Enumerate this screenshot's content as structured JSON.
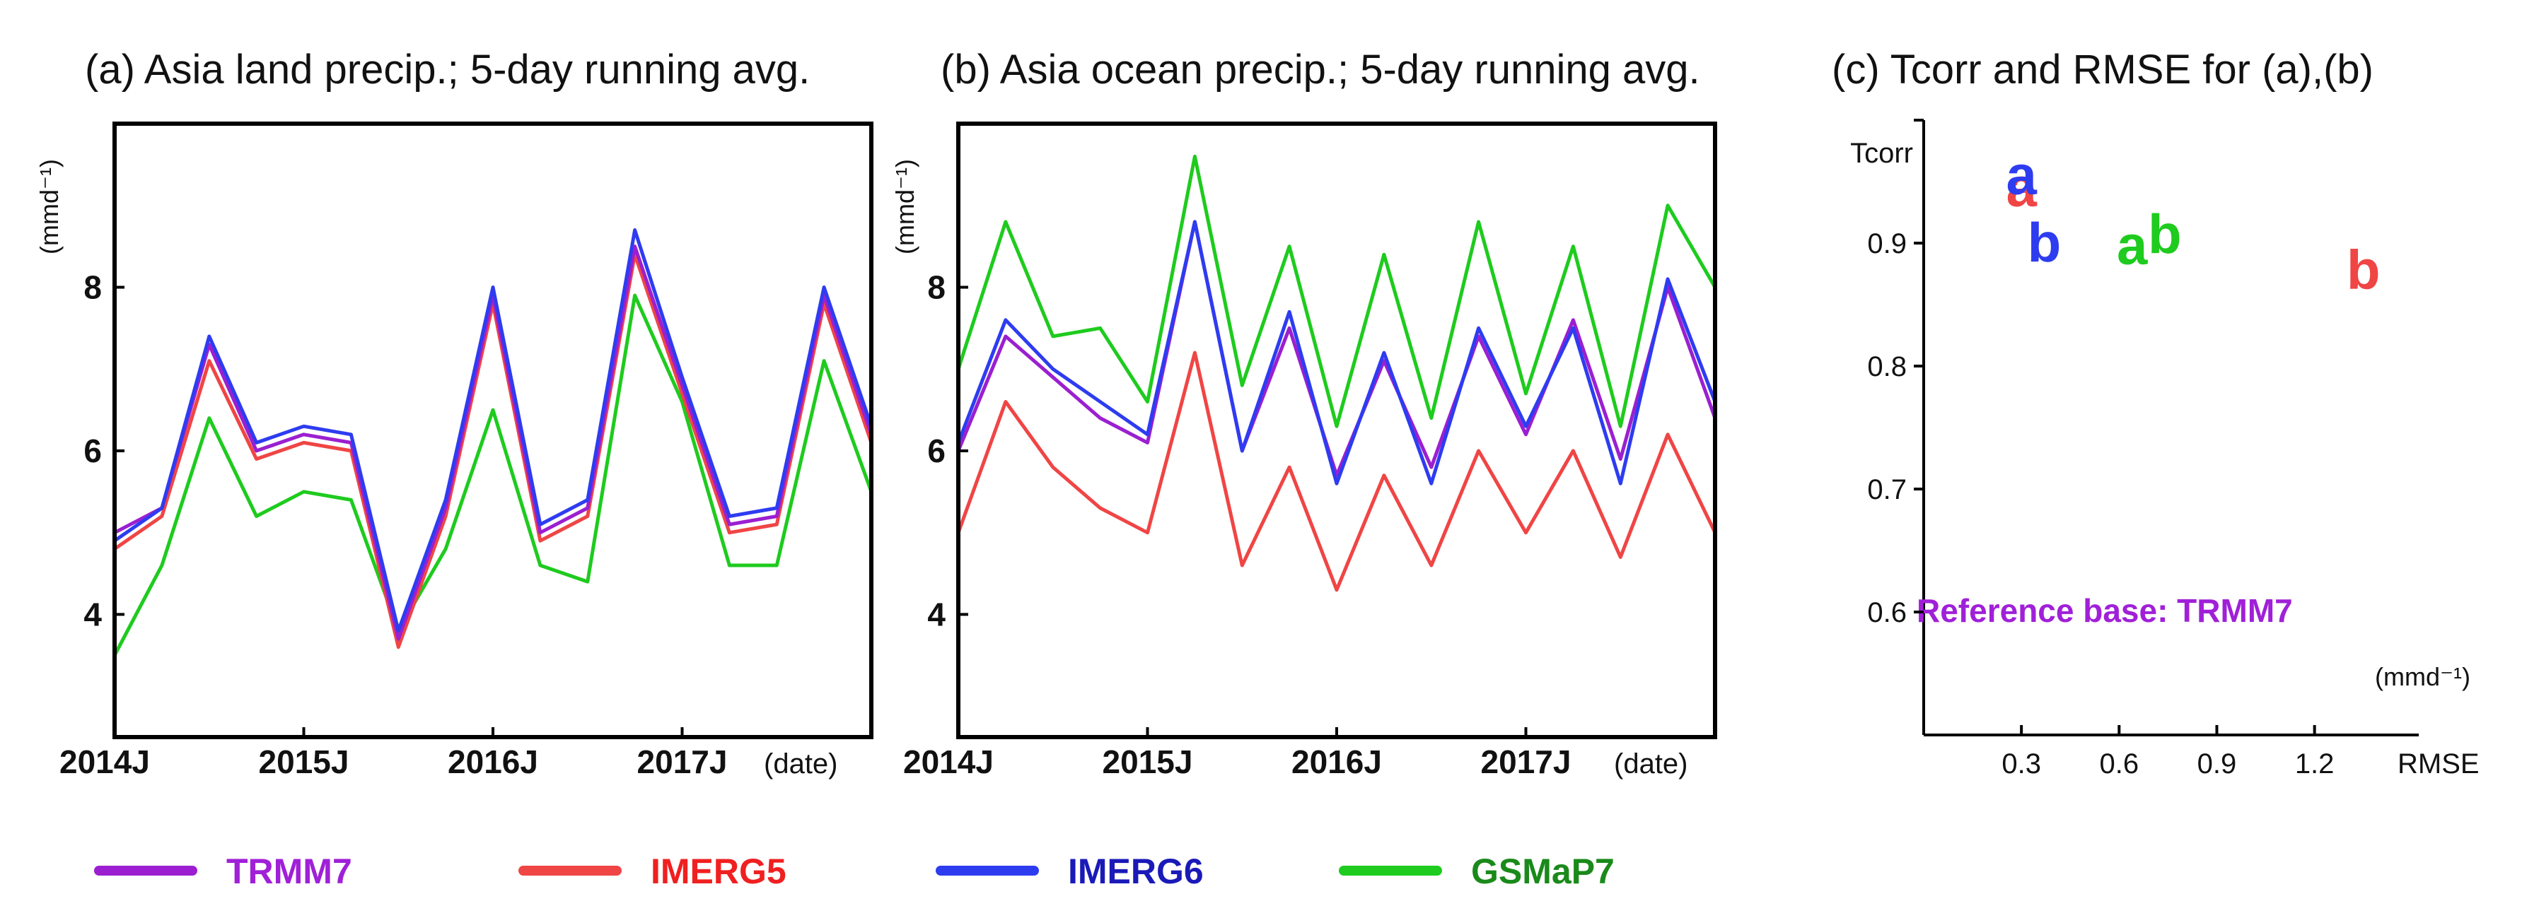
{
  "colors": {
    "TRMM7": "#9b1fd0",
    "IMERG5": "#f04545",
    "IMERG6": "#2e3cf0",
    "GSMaP7": "#1ecb1e"
  },
  "legend": [
    {
      "key": "TRMM7",
      "label": "TRMM7",
      "text_color": "#a020d8"
    },
    {
      "key": "IMERG5",
      "label": "IMERG5",
      "text_color": "#f02020"
    },
    {
      "key": "IMERG6",
      "label": "IMERG6",
      "text_color": "#1a1ab8"
    },
    {
      "key": "GSMaP7",
      "label": "GSMaP7",
      "text_color": "#1a8a1a"
    }
  ],
  "chart_data": [
    {
      "type": "line",
      "title": "(a) Asia land precip.; 5-day running avg.",
      "ylabel": "(mmd⁻¹)",
      "xlabel": "(date)",
      "x_ticks": [
        "2014J",
        "2015J",
        "2016J",
        "2017J"
      ],
      "y_ticks": [
        4,
        6,
        8
      ],
      "x": [
        0,
        3,
        6,
        9,
        12,
        15,
        18,
        21,
        24,
        27,
        30,
        33,
        36,
        39,
        42,
        45,
        48
      ],
      "xlim": [
        0,
        48
      ],
      "ylim": [
        2.5,
        10
      ],
      "series": [
        {
          "name": "TRMM7",
          "values": [
            5.0,
            5.3,
            7.3,
            6.0,
            6.2,
            6.1,
            3.7,
            5.3,
            7.9,
            5.0,
            5.3,
            8.5,
            6.8,
            5.1,
            5.2,
            7.9,
            6.2
          ]
        },
        {
          "name": "IMERG5",
          "values": [
            4.8,
            5.2,
            7.1,
            5.9,
            6.1,
            6.0,
            3.6,
            5.2,
            7.8,
            4.9,
            5.2,
            8.4,
            6.7,
            5.0,
            5.1,
            7.8,
            6.1
          ]
        },
        {
          "name": "IMERG6",
          "values": [
            4.9,
            5.3,
            7.4,
            6.1,
            6.3,
            6.2,
            3.8,
            5.4,
            8.0,
            5.1,
            5.4,
            8.7,
            6.9,
            5.2,
            5.3,
            8.0,
            6.3
          ]
        },
        {
          "name": "GSMaP7",
          "values": [
            3.5,
            4.6,
            6.4,
            5.2,
            5.5,
            5.4,
            3.8,
            4.8,
            6.5,
            4.6,
            4.4,
            7.9,
            6.6,
            4.6,
            4.6,
            7.1,
            5.5
          ]
        }
      ]
    },
    {
      "type": "line",
      "title": "(b) Asia ocean precip.; 5-day running avg.",
      "ylabel": "(mmd⁻¹)",
      "xlabel": "(date)",
      "x_ticks": [
        "2014J",
        "2015J",
        "2016J",
        "2017J"
      ],
      "y_ticks": [
        4,
        6,
        8
      ],
      "x": [
        0,
        3,
        6,
        9,
        12,
        15,
        18,
        21,
        24,
        27,
        30,
        33,
        36,
        39,
        42,
        45,
        48
      ],
      "xlim": [
        0,
        48
      ],
      "ylim": [
        2.5,
        10
      ],
      "series": [
        {
          "name": "TRMM7",
          "values": [
            6.0,
            7.4,
            6.9,
            6.4,
            6.1,
            8.8,
            6.0,
            7.5,
            5.7,
            7.1,
            5.8,
            7.4,
            6.2,
            7.6,
            5.9,
            8.0,
            6.4
          ]
        },
        {
          "name": "IMERG5",
          "values": [
            5.0,
            6.6,
            5.8,
            5.3,
            5.0,
            7.2,
            4.6,
            5.8,
            4.3,
            5.7,
            4.6,
            6.0,
            5.0,
            6.0,
            4.7,
            6.2,
            5.0
          ]
        },
        {
          "name": "IMERG6",
          "values": [
            6.1,
            7.6,
            7.0,
            6.6,
            6.2,
            8.8,
            6.0,
            7.7,
            5.6,
            7.2,
            5.6,
            7.5,
            6.3,
            7.5,
            5.6,
            8.1,
            6.6
          ]
        },
        {
          "name": "GSMaP7",
          "values": [
            7.0,
            8.8,
            7.4,
            7.5,
            6.6,
            9.6,
            6.8,
            8.5,
            6.3,
            8.4,
            6.4,
            8.8,
            6.7,
            8.5,
            6.3,
            9.0,
            8.0
          ]
        }
      ]
    },
    {
      "type": "scatter",
      "title": "(c) Tcorr  and RMSE for (a),(b)",
      "xlabel": "RMSE",
      "ylabel": "Tcorr",
      "x_unit": "(mmd⁻¹)",
      "x_ticks": [
        0.3,
        0.6,
        0.9,
        1.2
      ],
      "y_ticks": [
        0.6,
        0.7,
        0.8,
        0.9
      ],
      "xlim": [
        0,
        1.52
      ],
      "ylim": [
        0.5,
        1.0
      ],
      "annotation": "Reference base: TRMM7",
      "points": [
        {
          "label": "a",
          "series": "IMERG5",
          "x": 0.3,
          "y": 0.945
        },
        {
          "label": "a",
          "series": "IMERG6",
          "x": 0.3,
          "y": 0.955
        },
        {
          "label": "b",
          "series": "IMERG6",
          "x": 0.37,
          "y": 0.9
        },
        {
          "label": "a",
          "series": "GSMaP7",
          "x": 0.64,
          "y": 0.898
        },
        {
          "label": "b",
          "series": "GSMaP7",
          "x": 0.74,
          "y": 0.907
        },
        {
          "label": "b",
          "series": "IMERG5",
          "x": 1.35,
          "y": 0.878
        }
      ]
    }
  ]
}
